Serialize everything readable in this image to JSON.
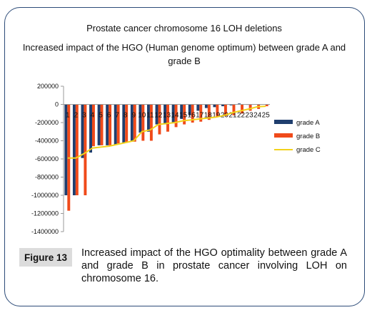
{
  "chart_data": {
    "type": "bar",
    "title": "Prostate cancer chromosome 16 LOH deletions",
    "subtitle_line1": "Increased impact of the HGO (Human genome optimum) between grade A and",
    "subtitle_line2": "grade B",
    "categories": [
      "1",
      "2",
      "3",
      "4",
      "5",
      "6",
      "7",
      "8",
      "9",
      "10",
      "11",
      "12",
      "13",
      "14",
      "15",
      "16",
      "17",
      "18",
      "19",
      "20",
      "21",
      "22",
      "23",
      "24",
      "25"
    ],
    "ylim": [
      -1400000,
      200000
    ],
    "yticks": [
      200000,
      0,
      -200000,
      -400000,
      -600000,
      -800000,
      -1000000,
      -1200000,
      -1400000
    ],
    "ytick_labels": [
      "200000",
      "0",
      "-200000",
      "-400000",
      "-600000",
      "-800000",
      "-1000000",
      "-1200000",
      "-1400000"
    ],
    "legend_position": "right",
    "series": [
      {
        "name": "grade A",
        "kind": "bar",
        "color": "#1f3e6e",
        "values": [
          -1000000,
          -1000000,
          -590000,
          -530000,
          -450000,
          -450000,
          -440000,
          -420000,
          -410000,
          -310000,
          -300000,
          -220000,
          -220000,
          -200000,
          -160000,
          -120000,
          -70000,
          -40000,
          -30000,
          -20000,
          -10000,
          10000,
          -5000,
          -3000,
          -2000
        ]
      },
      {
        "name": "grade B",
        "kind": "bar",
        "color": "#f04a1a",
        "values": [
          -1170000,
          -1000000,
          -1000000,
          -460000,
          -450000,
          -450000,
          -430000,
          -420000,
          -410000,
          -400000,
          -400000,
          -330000,
          -300000,
          -250000,
          -220000,
          -200000,
          -190000,
          -170000,
          -140000,
          -130000,
          -120000,
          -100000,
          -70000,
          -50000,
          -20000
        ]
      },
      {
        "name": "grade C",
        "kind": "line",
        "color": "#f2d21b",
        "values": [
          -590000,
          -590000,
          -540000,
          -480000,
          -470000,
          -460000,
          -440000,
          -420000,
          -400000,
          -300000,
          -280000,
          -220000,
          -210000,
          -200000,
          -180000,
          -170000,
          -160000,
          -150000,
          -140000,
          -120000,
          -90000,
          -70000,
          -50000,
          -25000,
          -20000
        ]
      }
    ]
  },
  "caption": {
    "label": "Figure 13",
    "text": "Increased impact of the HGO optimality between grade A and grade B in prostate cancer involving LOH on chromosome 16."
  }
}
